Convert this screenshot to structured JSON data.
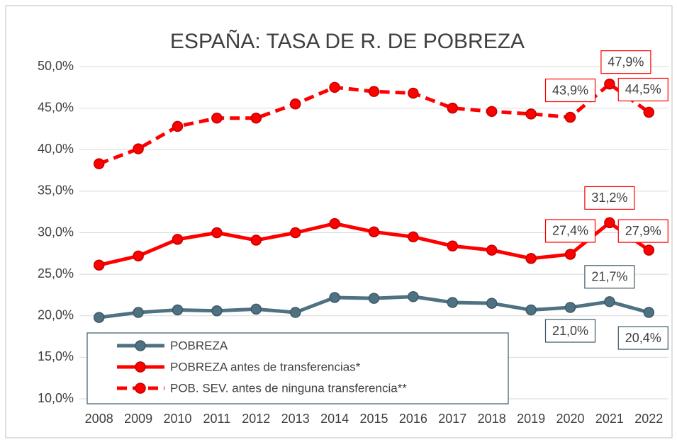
{
  "chart_data": {
    "type": "line",
    "title": "ESPAÑA: TASA DE R. DE POBREZA",
    "categories": [
      "2008",
      "2009",
      "2010",
      "2011",
      "2012",
      "2013",
      "2014",
      "2015",
      "2016",
      "2017",
      "2018",
      "2019",
      "2020",
      "2021",
      "2022"
    ],
    "series": [
      {
        "name": "POBREZA",
        "color": "#4f7282",
        "dash": false,
        "values": [
          19.8,
          20.4,
          20.7,
          20.6,
          20.8,
          20.4,
          22.2,
          22.1,
          22.3,
          21.6,
          21.5,
          20.7,
          21.0,
          21.7,
          20.4
        ],
        "value_labels": [
          null,
          null,
          null,
          null,
          null,
          null,
          null,
          null,
          null,
          null,
          null,
          null,
          "21,0%",
          "21,7%",
          "20,4%"
        ]
      },
      {
        "name": "POBREZA antes de transferencias*",
        "color": "#ff0000",
        "dash": false,
        "values": [
          26.1,
          27.2,
          29.2,
          30.0,
          29.1,
          30.0,
          31.1,
          30.1,
          29.5,
          28.4,
          27.9,
          26.9,
          27.4,
          31.2,
          27.9
        ],
        "value_labels": [
          null,
          null,
          null,
          null,
          null,
          null,
          null,
          null,
          null,
          null,
          null,
          null,
          "27,4%",
          "31,2%",
          "27,9%"
        ]
      },
      {
        "name": "POB. SEV. antes de ninguna transferencia**",
        "color": "#ff0000",
        "dash": true,
        "values": [
          38.3,
          40.1,
          42.8,
          43.8,
          43.8,
          45.5,
          47.5,
          47.0,
          46.8,
          45.0,
          44.6,
          44.3,
          43.9,
          47.9,
          44.5
        ],
        "value_labels": [
          null,
          null,
          null,
          null,
          null,
          null,
          null,
          null,
          null,
          null,
          null,
          null,
          "43,9%",
          "47,9%",
          "44,5%"
        ]
      }
    ],
    "ylim": [
      10,
      50
    ],
    "yticks": [
      {
        "value": 10,
        "label": "10,0%"
      },
      {
        "value": 15,
        "label": "15,0%"
      },
      {
        "value": 20,
        "label": "20,0%"
      },
      {
        "value": 25,
        "label": "25,0%"
      },
      {
        "value": 30,
        "label": "30,0%"
      },
      {
        "value": 35,
        "label": "35,0%"
      },
      {
        "value": 40,
        "label": "40,0%"
      },
      {
        "value": 45,
        "label": "45,0%"
      },
      {
        "value": 50,
        "label": "50,0%"
      }
    ],
    "grid": true
  }
}
